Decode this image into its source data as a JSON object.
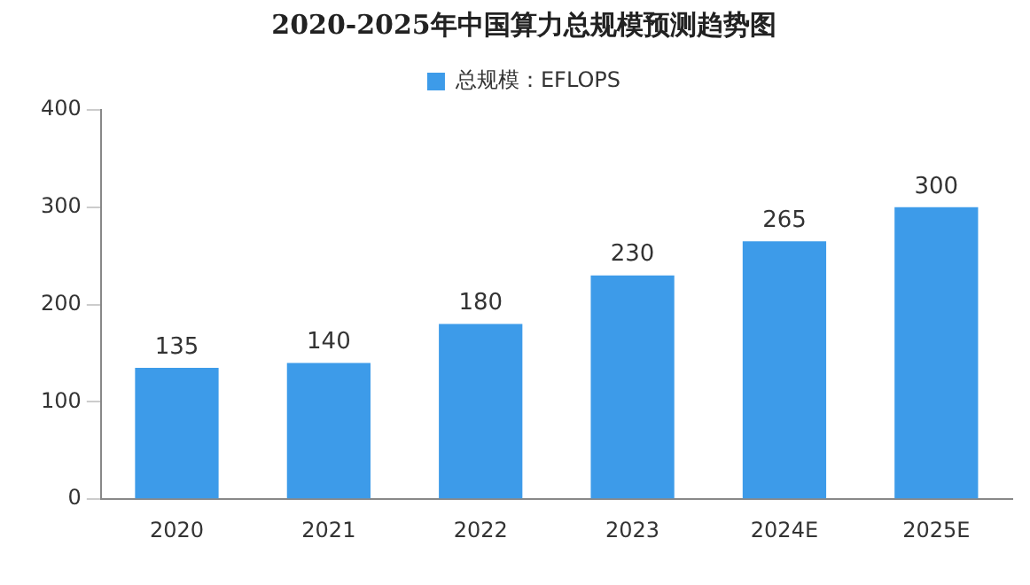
{
  "chart_data": {
    "type": "bar",
    "title": "2020-2025年中国算力总规模预测趋势图",
    "categories": [
      "2020",
      "2021",
      "2022",
      "2023",
      "2024E",
      "2025E"
    ],
    "series": [
      {
        "name": "总规模：EFLOPS",
        "color": "#3d9be9",
        "values": [
          135,
          140,
          180,
          230,
          265,
          300
        ]
      }
    ],
    "ylim": [
      0,
      400
    ],
    "yticks": [
      0,
      100,
      200,
      300,
      400
    ],
    "grid": false,
    "legend": "top",
    "data_labels": true
  }
}
